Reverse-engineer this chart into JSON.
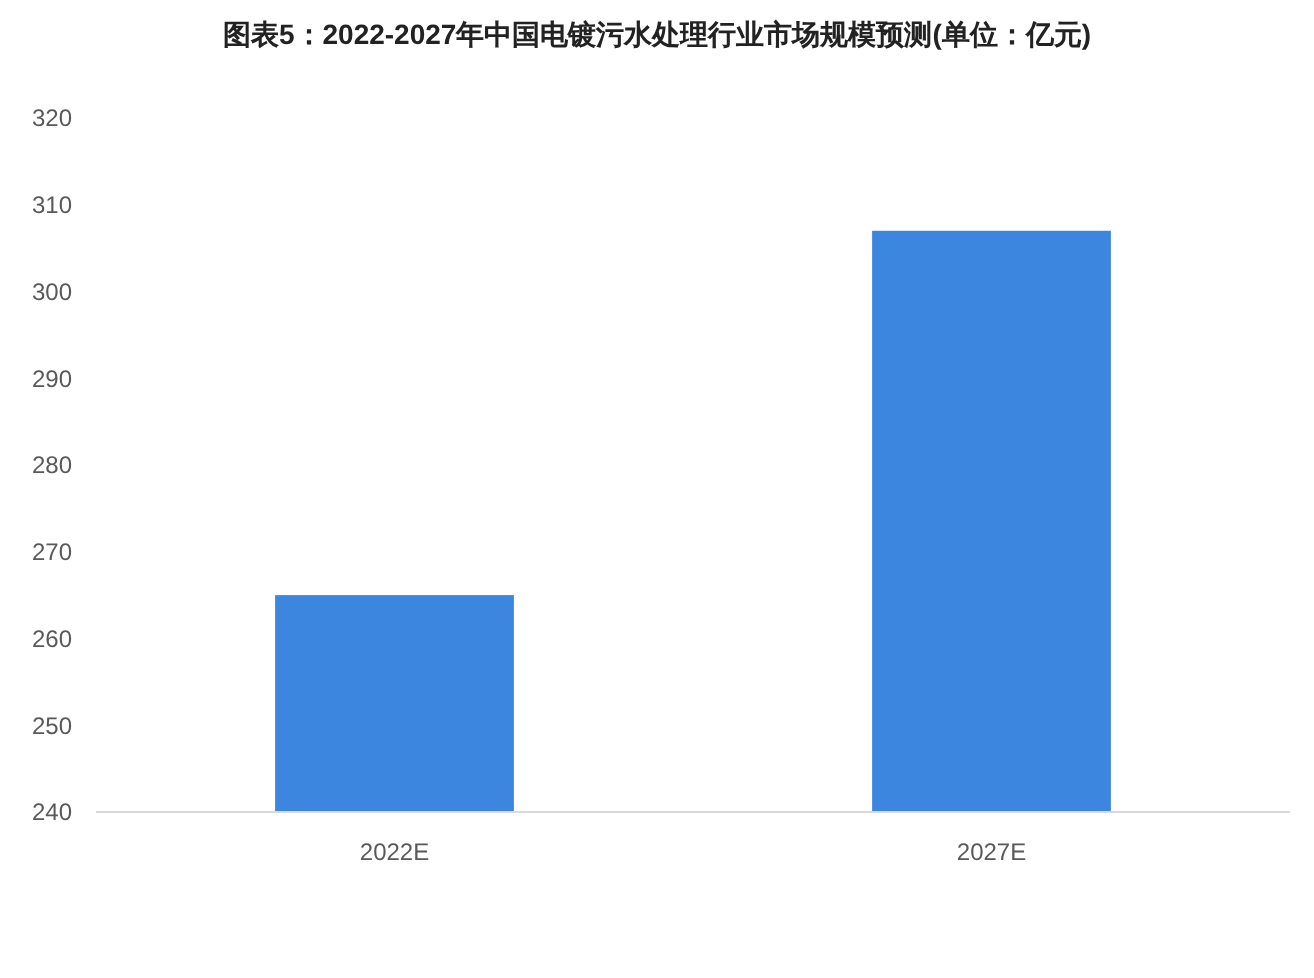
{
  "chart_data": {
    "type": "bar",
    "title": "图表5：2022-2027年中国电镀污水处理行业市场规模预测(单位：亿元)",
    "categories": [
      "2022E",
      "2027E"
    ],
    "values": [
      265,
      307
    ],
    "color": "#3d86e0",
    "ylim": [
      240,
      320
    ],
    "yticks": [
      240,
      250,
      260,
      270,
      280,
      290,
      300,
      310,
      320
    ]
  }
}
